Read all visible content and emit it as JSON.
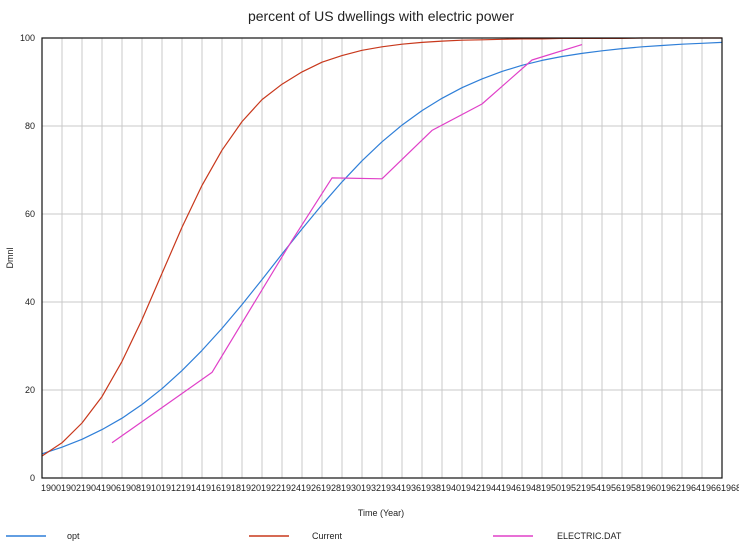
{
  "chart_data": {
    "type": "line",
    "title": "percent of US dwellings with electric power",
    "xlabel": "Time (Year)",
    "ylabel": "Dmnl",
    "xlim": [
      1900,
      1968
    ],
    "ylim": [
      0,
      100
    ],
    "yticks": [
      0,
      20,
      40,
      60,
      80,
      100
    ],
    "xticks": [
      1900,
      1902,
      1904,
      1906,
      1908,
      1910,
      1912,
      1914,
      1916,
      1918,
      1920,
      1922,
      1924,
      1926,
      1928,
      1930,
      1932,
      1934,
      1936,
      1938,
      1940,
      1942,
      1944,
      1946,
      1948,
      1950,
      1952,
      1954,
      1956,
      1958,
      1960,
      1962,
      1964,
      1966,
      1968
    ],
    "grid": true,
    "series": [
      {
        "name": "opt",
        "color": "#2f7fd8",
        "x": [
          1900,
          1902,
          1904,
          1906,
          1908,
          1910,
          1912,
          1914,
          1916,
          1918,
          1920,
          1922,
          1924,
          1926,
          1928,
          1930,
          1932,
          1934,
          1936,
          1938,
          1940,
          1942,
          1944,
          1946,
          1948,
          1950,
          1952,
          1954,
          1956,
          1958,
          1960,
          1962,
          1964,
          1966,
          1968
        ],
        "values": [
          5.5,
          7.0,
          8.8,
          11.0,
          13.6,
          16.7,
          20.3,
          24.4,
          29.0,
          34.0,
          39.4,
          45.1,
          50.9,
          56.6,
          62.1,
          67.3,
          72.1,
          76.4,
          80.2,
          83.5,
          86.3,
          88.7,
          90.7,
          92.4,
          93.8,
          94.9,
          95.8,
          96.5,
          97.1,
          97.6,
          98.0,
          98.3,
          98.6,
          98.8,
          99.0
        ]
      },
      {
        "name": "Current",
        "color": "#c8381c",
        "x": [
          1900,
          1902,
          1904,
          1906,
          1908,
          1910,
          1912,
          1914,
          1916,
          1918,
          1920,
          1922,
          1924,
          1926,
          1928,
          1930,
          1932,
          1934,
          1936,
          1938,
          1940,
          1942,
          1944,
          1946,
          1948,
          1950,
          1952,
          1954,
          1956,
          1958,
          1960,
          1962,
          1964,
          1966,
          1968
        ],
        "values": [
          5.0,
          8.0,
          12.5,
          18.5,
          26.5,
          36.0,
          46.5,
          57.0,
          66.5,
          74.5,
          81.0,
          86.0,
          89.5,
          92.3,
          94.5,
          96.0,
          97.2,
          98.0,
          98.6,
          99.0,
          99.3,
          99.5,
          99.6,
          99.7,
          99.8,
          99.8,
          99.9,
          99.9,
          99.9,
          99.9,
          100.0,
          100.0,
          100.0,
          100.0,
          100.0
        ]
      },
      {
        "name": "ELECTRIC.DAT",
        "color": "#e040c8",
        "x": [
          1907,
          1917,
          1925,
          1929,
          1934,
          1939,
          1944,
          1949,
          1954
        ],
        "values": [
          8.0,
          24.0,
          54.0,
          68.2,
          68.0,
          79.0,
          85.0,
          95.0,
          98.5
        ]
      }
    ]
  }
}
